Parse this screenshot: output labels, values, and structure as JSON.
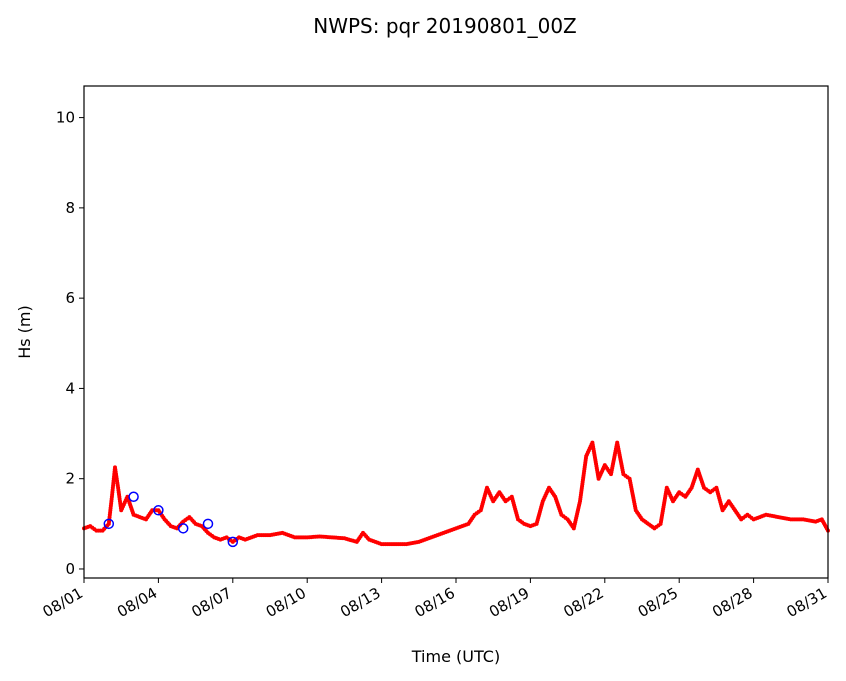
{
  "chart_data": {
    "type": "line",
    "title": "NWPS: pqr 20190801_00Z",
    "xlabel": "Time (UTC)",
    "ylabel": "Hs (m)",
    "xlim": [
      "2019-08-01",
      "2019-08-31"
    ],
    "ylim": [
      -0.2,
      10.7
    ],
    "x_ticks": [
      "08/01",
      "08/04",
      "08/07",
      "08/10",
      "08/13",
      "08/16",
      "08/19",
      "08/22",
      "08/25",
      "08/28",
      "08/31"
    ],
    "y_ticks": [
      0,
      2,
      4,
      6,
      8,
      10
    ],
    "grid": false,
    "legend": "none",
    "series": [
      {
        "color": "#ff0000",
        "marker": "dot",
        "x": [
          "2019-08-01 00:00",
          "2019-08-01 06:00",
          "2019-08-01 12:00",
          "2019-08-01 18:00",
          "2019-08-02 00:00",
          "2019-08-02 03:00",
          "2019-08-02 06:00",
          "2019-08-02 09:00",
          "2019-08-02 12:00",
          "2019-08-02 18:00",
          "2019-08-03 00:00",
          "2019-08-03 06:00",
          "2019-08-03 12:00",
          "2019-08-03 18:00",
          "2019-08-04 00:00",
          "2019-08-04 06:00",
          "2019-08-04 12:00",
          "2019-08-04 18:00",
          "2019-08-05 00:00",
          "2019-08-05 06:00",
          "2019-08-05 12:00",
          "2019-08-05 18:00",
          "2019-08-06 00:00",
          "2019-08-06 06:00",
          "2019-08-06 12:00",
          "2019-08-06 18:00",
          "2019-08-07 00:00",
          "2019-08-07 06:00",
          "2019-08-07 12:00",
          "2019-08-08 00:00",
          "2019-08-08 12:00",
          "2019-08-09 00:00",
          "2019-08-09 12:00",
          "2019-08-10 00:00",
          "2019-08-10 12:00",
          "2019-08-11 00:00",
          "2019-08-11 12:00",
          "2019-08-12 00:00",
          "2019-08-12 06:00",
          "2019-08-12 12:00",
          "2019-08-13 00:00",
          "2019-08-13 12:00",
          "2019-08-14 00:00",
          "2019-08-14 12:00",
          "2019-08-15 00:00",
          "2019-08-15 12:00",
          "2019-08-16 00:00",
          "2019-08-16 12:00",
          "2019-08-16 18:00",
          "2019-08-17 00:00",
          "2019-08-17 06:00",
          "2019-08-17 12:00",
          "2019-08-17 18:00",
          "2019-08-18 00:00",
          "2019-08-18 06:00",
          "2019-08-18 12:00",
          "2019-08-18 18:00",
          "2019-08-19 00:00",
          "2019-08-19 06:00",
          "2019-08-19 12:00",
          "2019-08-19 18:00",
          "2019-08-20 00:00",
          "2019-08-20 06:00",
          "2019-08-20 12:00",
          "2019-08-20 18:00",
          "2019-08-21 00:00",
          "2019-08-21 06:00",
          "2019-08-21 12:00",
          "2019-08-21 18:00",
          "2019-08-22 00:00",
          "2019-08-22 06:00",
          "2019-08-22 12:00",
          "2019-08-22 18:00",
          "2019-08-23 00:00",
          "2019-08-23 06:00",
          "2019-08-23 12:00",
          "2019-08-24 00:00",
          "2019-08-24 06:00",
          "2019-08-24 12:00",
          "2019-08-24 18:00",
          "2019-08-25 00:00",
          "2019-08-25 06:00",
          "2019-08-25 12:00",
          "2019-08-25 18:00",
          "2019-08-26 00:00",
          "2019-08-26 06:00",
          "2019-08-26 12:00",
          "2019-08-26 18:00",
          "2019-08-27 00:00",
          "2019-08-27 06:00",
          "2019-08-27 12:00",
          "2019-08-27 18:00",
          "2019-08-28 00:00",
          "2019-08-28 12:00",
          "2019-08-29 00:00",
          "2019-08-29 12:00",
          "2019-08-30 00:00",
          "2019-08-30 12:00",
          "2019-08-30 18:00",
          "2019-08-31 00:00"
        ],
        "y": [
          0.9,
          0.95,
          0.85,
          0.85,
          1.0,
          1.6,
          2.25,
          1.8,
          1.3,
          1.6,
          1.2,
          1.15,
          1.1,
          1.3,
          1.3,
          1.1,
          0.95,
          0.9,
          1.05,
          1.15,
          1.0,
          0.95,
          0.8,
          0.7,
          0.65,
          0.7,
          0.6,
          0.7,
          0.65,
          0.75,
          0.75,
          0.8,
          0.7,
          0.7,
          0.72,
          0.7,
          0.68,
          0.6,
          0.8,
          0.65,
          0.55,
          0.55,
          0.55,
          0.6,
          0.7,
          0.8,
          0.9,
          1.0,
          1.2,
          1.3,
          1.8,
          1.5,
          1.7,
          1.5,
          1.6,
          1.1,
          1.0,
          0.95,
          1.0,
          1.5,
          1.8,
          1.6,
          1.2,
          1.1,
          0.9,
          1.5,
          2.5,
          2.8,
          2.0,
          2.3,
          2.1,
          2.8,
          2.1,
          2.0,
          1.3,
          1.1,
          0.9,
          1.0,
          1.8,
          1.5,
          1.7,
          1.6,
          1.8,
          2.2,
          1.8,
          1.7,
          1.8,
          1.3,
          1.5,
          1.3,
          1.1,
          1.2,
          1.1,
          1.2,
          1.15,
          1.1,
          1.1,
          1.05,
          1.1,
          0.85
        ]
      },
      {
        "color": "#0000ff",
        "marker": "circle",
        "x": [
          "2019-08-02 00:00",
          "2019-08-03 00:00",
          "2019-08-04 00:00",
          "2019-08-05 00:00",
          "2019-08-06 00:00",
          "2019-08-07 00:00"
        ],
        "y": [
          1.0,
          1.6,
          1.3,
          0.9,
          1.0,
          0.6
        ]
      }
    ]
  }
}
